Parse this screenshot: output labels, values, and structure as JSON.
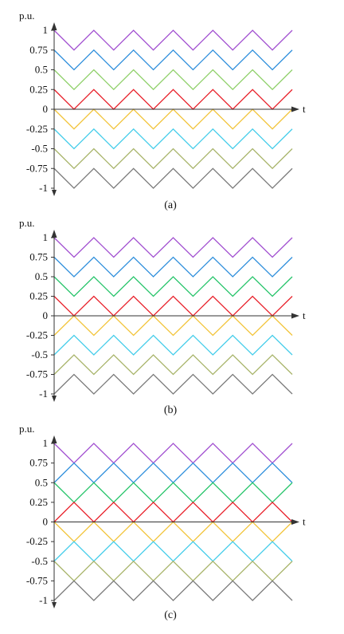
{
  "chart_data": [
    {
      "type": "line",
      "caption": "(a)",
      "ylabel": "p.u.",
      "xlabel": "t",
      "ylim": [
        -1,
        1
      ],
      "yticks": [
        1,
        0.75,
        0.5,
        0.25,
        0,
        -0.25,
        -0.5,
        -0.75,
        -1
      ],
      "ytick_labels": [
        "1",
        "0.75",
        "0.5",
        "0.25",
        "0",
        "-0.25",
        "-0.5",
        "-0.75",
        "-1"
      ],
      "period": 1,
      "x_range": [
        0,
        6
      ],
      "series": [
        {
          "color": "#a14fd0",
          "min": 0.75,
          "max": 1,
          "phase": 0
        },
        {
          "color": "#2f8fdc",
          "min": 0.5,
          "max": 0.75,
          "phase": 0
        },
        {
          "color": "#8fd06a",
          "min": 0.25,
          "max": 0.5,
          "phase": 0
        },
        {
          "color": "#e8202a",
          "min": 0,
          "max": 0.25,
          "phase": 0
        },
        {
          "color": "#f2c43a",
          "min": -0.25,
          "max": 0,
          "phase": 0
        },
        {
          "color": "#45cdea",
          "min": -0.5,
          "max": -0.25,
          "phase": 0
        },
        {
          "color": "#a8b46a",
          "min": -0.75,
          "max": -0.5,
          "phase": 0
        },
        {
          "color": "#7a7a7a",
          "min": -1,
          "max": -0.75,
          "phase": 0
        }
      ]
    },
    {
      "type": "line",
      "caption": "(b)",
      "ylabel": "p.u.",
      "xlabel": "t",
      "ylim": [
        -1,
        1
      ],
      "yticks": [
        1,
        0.75,
        0.5,
        0.25,
        0,
        -0.25,
        -0.5,
        -0.75,
        -1
      ],
      "ytick_labels": [
        "1",
        "0.75",
        "0.5",
        "0.25",
        "0",
        "-0.25",
        "-0.5",
        "-0.75",
        "-1"
      ],
      "period": 1,
      "x_range": [
        0,
        6
      ],
      "series": [
        {
          "color": "#a14fd0",
          "min": 0.75,
          "max": 1,
          "phase": 0
        },
        {
          "color": "#2f8fdc",
          "min": 0.5,
          "max": 0.75,
          "phase": 0
        },
        {
          "color": "#26c46a",
          "min": 0.25,
          "max": 0.5,
          "phase": 0
        },
        {
          "color": "#e8202a",
          "min": 0,
          "max": 0.25,
          "phase": 0
        },
        {
          "color": "#f2c43a",
          "min": -0.25,
          "max": 0,
          "phase": 0.5
        },
        {
          "color": "#45cdea",
          "min": -0.5,
          "max": -0.25,
          "phase": 0.5
        },
        {
          "color": "#a8b46a",
          "min": -0.75,
          "max": -0.5,
          "phase": 0.5
        },
        {
          "color": "#7a7a7a",
          "min": -1,
          "max": -0.75,
          "phase": 0.5
        }
      ]
    },
    {
      "type": "line",
      "caption": "(c)",
      "ylabel": "p.u.",
      "xlabel": "t",
      "ylim": [
        -1,
        1
      ],
      "yticks": [
        1,
        0.75,
        0.5,
        0.25,
        0,
        -0.25,
        -0.5,
        -0.75,
        -1
      ],
      "ytick_labels": [
        "1",
        "0.75",
        "0.5",
        "0.25",
        "0",
        "-0.25",
        "-0.5",
        "-0.75",
        "-1"
      ],
      "period": 1,
      "x_range": [
        0,
        6
      ],
      "series": [
        {
          "color": "#a14fd0",
          "min": 0.75,
          "max": 1,
          "phase": 0
        },
        {
          "color": "#2f8fdc",
          "min": 0.5,
          "max": 0.75,
          "phase": 0.5
        },
        {
          "color": "#26c46a",
          "min": 0.25,
          "max": 0.5,
          "phase": 0
        },
        {
          "color": "#e8202a",
          "min": 0,
          "max": 0.25,
          "phase": 0.5
        },
        {
          "color": "#f2c43a",
          "min": -0.25,
          "max": 0,
          "phase": 0
        },
        {
          "color": "#45cdea",
          "min": -0.5,
          "max": -0.25,
          "phase": 0.5
        },
        {
          "color": "#a8b46a",
          "min": -0.75,
          "max": -0.5,
          "phase": 0
        },
        {
          "color": "#7a7a7a",
          "min": -1,
          "max": -0.75,
          "phase": 0.5
        }
      ]
    }
  ]
}
